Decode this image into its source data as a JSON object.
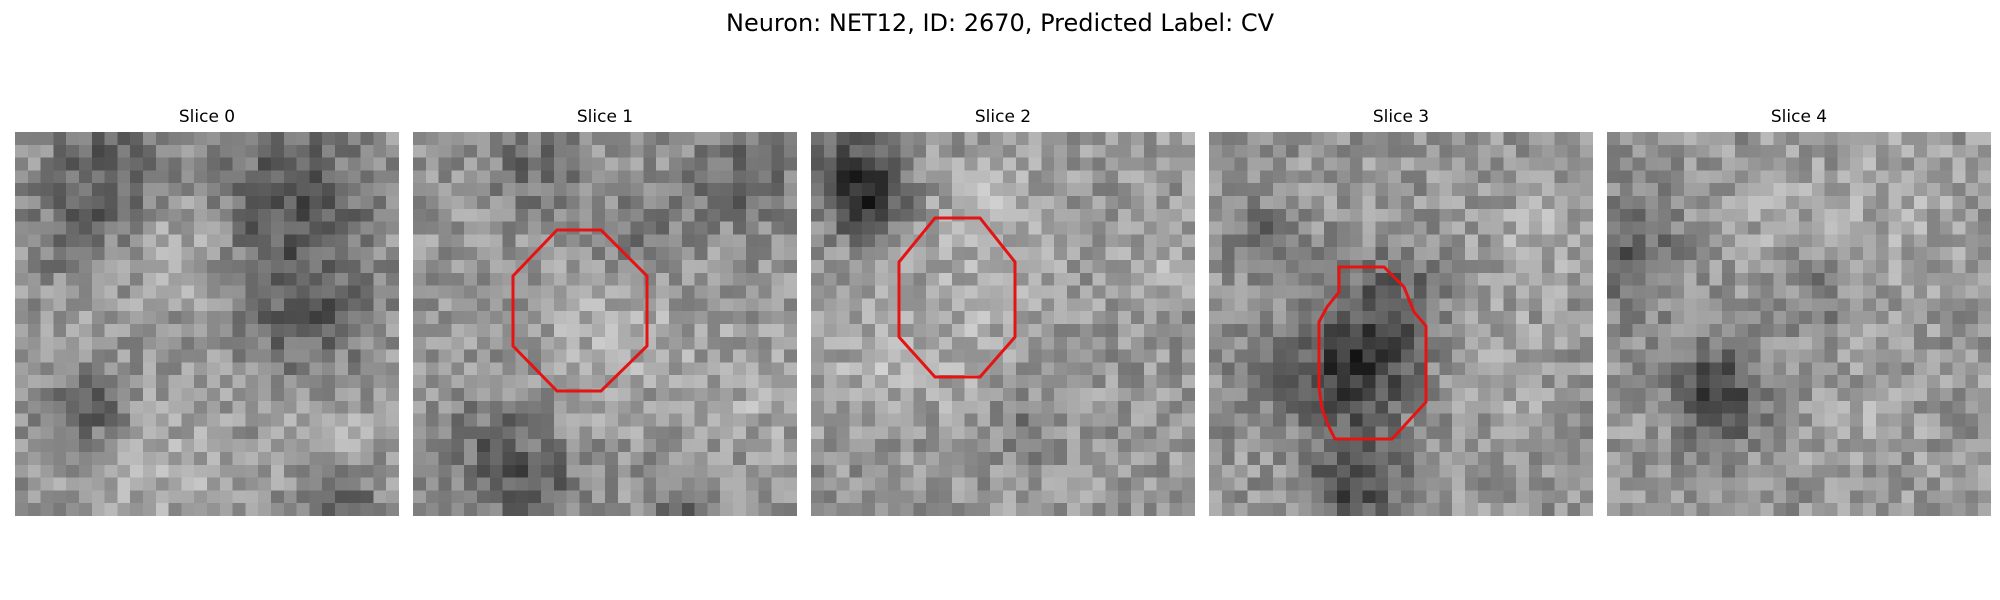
{
  "figure": {
    "title": "Neuron: NET12, ID: 2670, Predicted Label: CV",
    "contour_color": "#e41414"
  },
  "panels": [
    {
      "title": "Slice 0",
      "has_contour": false,
      "seed": 11
    },
    {
      "title": "Slice 1",
      "has_contour": true,
      "seed": 23
    },
    {
      "title": "Slice 2",
      "has_contour": true,
      "seed": 37
    },
    {
      "title": "Slice 3",
      "has_contour": true,
      "seed": 53
    },
    {
      "title": "Slice 4",
      "has_contour": false,
      "seed": 71
    }
  ]
}
